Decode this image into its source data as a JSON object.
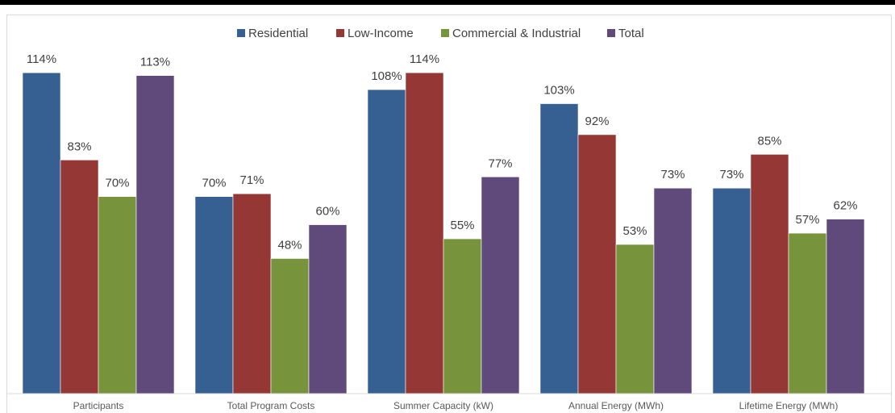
{
  "chart_data": {
    "type": "bar",
    "categories": [
      "Participants",
      "Total Program Costs",
      "Summer Capacity (kW)",
      "Annual Energy (MWh)",
      "Lifetime Energy (MWh)"
    ],
    "series": [
      {
        "name": "Residential",
        "color": "#376092",
        "values": [
          114,
          70,
          108,
          103,
          73
        ],
        "labels": [
          "114%",
          "70%",
          "108%",
          "103%",
          "73%"
        ]
      },
      {
        "name": "Low-Income",
        "color": "#953735",
        "values": [
          83,
          71,
          114,
          92,
          85
        ],
        "labels": [
          "83%",
          "71%",
          "114%",
          "92%",
          "85%"
        ]
      },
      {
        "name": "Commercial & Industrial",
        "color": "#77933c",
        "values": [
          70,
          48,
          55,
          53,
          57
        ],
        "labels": [
          "70%",
          "48%",
          "55%",
          "53%",
          "57%"
        ]
      },
      {
        "name": "Total",
        "color": "#604a7b",
        "values": [
          113,
          60,
          77,
          73,
          62
        ],
        "labels": [
          "113%",
          "60%",
          "77%",
          "73%",
          "62%"
        ]
      }
    ],
    "ylim": [
      0,
      120
    ],
    "legend": "top-center",
    "grid": false
  }
}
